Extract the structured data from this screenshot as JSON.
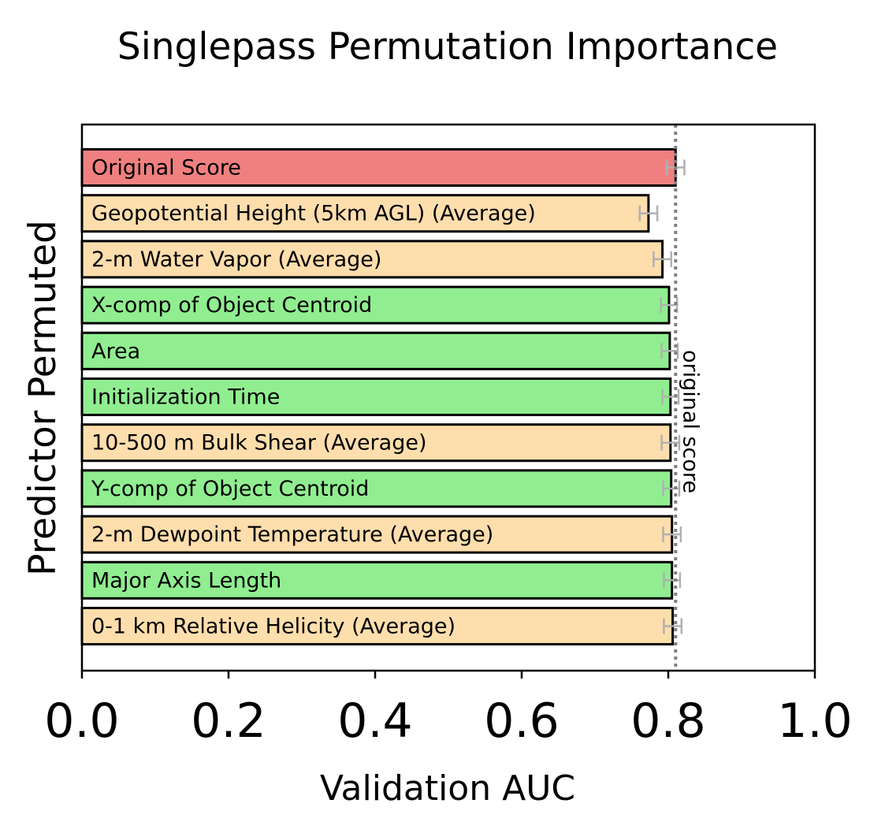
{
  "chart_data": {
    "type": "bar",
    "orientation": "horizontal",
    "title": "Singlepass Permutation Importance",
    "xlabel": "Validation AUC",
    "ylabel": "Predictor Permuted",
    "xlim": [
      0.0,
      1.0
    ],
    "xticks": [
      "0.0",
      "0.2",
      "0.4",
      "0.6",
      "0.8",
      "1.0"
    ],
    "grid": false,
    "legend": "none",
    "reference_line": {
      "value": 0.81,
      "label": "original score",
      "style": "dotted",
      "color": "#808080"
    },
    "categories": [
      "Original Score",
      "Geopotential Height (5km AGL) (Average)",
      "2-m Water Vapor (Average)",
      "X-comp of Object Centroid",
      "Area",
      "Initialization Time",
      "10-500 m Bulk Shear (Average)",
      "Y-comp of Object Centroid",
      "2-m Dewpoint Temperature (Average)",
      "Major Axis Length",
      "0-1 km Relative Helicity (Average)"
    ],
    "values": [
      0.81,
      0.773,
      0.792,
      0.801,
      0.802,
      0.803,
      0.803,
      0.804,
      0.805,
      0.805,
      0.806
    ],
    "error": [
      0.012,
      0.012,
      0.012,
      0.011,
      0.011,
      0.011,
      0.012,
      0.011,
      0.012,
      0.011,
      0.012
    ],
    "bar_colors": [
      "#f08080",
      "#ffdead",
      "#ffdead",
      "#90ee90",
      "#90ee90",
      "#90ee90",
      "#ffdead",
      "#90ee90",
      "#ffdead",
      "#90ee90",
      "#ffdead"
    ],
    "errorbar_color": "#b0b0b0"
  }
}
